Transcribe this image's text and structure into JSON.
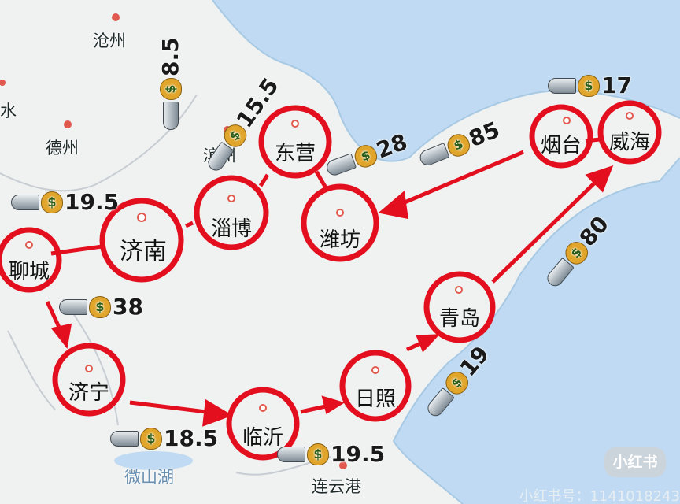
{
  "colors": {
    "sea": "#bfdaf2",
    "land": "#f0f2f1",
    "route": "#e30f1e",
    "dot": "#e0584e"
  },
  "places": [
    {
      "id": "cangzhou",
      "name": "沧州"
    },
    {
      "id": "dezhou",
      "name": "德州"
    },
    {
      "id": "shui",
      "name": "水"
    },
    {
      "id": "binzhou",
      "name": "滨州"
    },
    {
      "id": "weishanhu",
      "name": "微山湖"
    },
    {
      "id": "lianyungang",
      "name": "连云港"
    }
  ],
  "cities": [
    {
      "id": "liaocheng",
      "name": "聊城"
    },
    {
      "id": "jinan",
      "name": "济南"
    },
    {
      "id": "zibo",
      "name": "淄博"
    },
    {
      "id": "dongying",
      "name": "东营"
    },
    {
      "id": "weifang",
      "name": "潍坊"
    },
    {
      "id": "yantai",
      "name": "烟台"
    },
    {
      "id": "weihai",
      "name": "威海"
    },
    {
      "id": "qingdao",
      "name": "青岛"
    },
    {
      "id": "rizhao",
      "name": "日照"
    },
    {
      "id": "linyi",
      "name": "临沂"
    },
    {
      "id": "jining",
      "name": "济宁"
    }
  ],
  "fares": [
    {
      "id": "liaocheng-jinan",
      "value": "19.5"
    },
    {
      "id": "jinan-zibo",
      "value": "8.5"
    },
    {
      "id": "zibo-dongying",
      "value": "15.5"
    },
    {
      "id": "dongying-weifang",
      "value": "28"
    },
    {
      "id": "yantai-weifang",
      "value": "85"
    },
    {
      "id": "weihai-yantai",
      "value": "17"
    },
    {
      "id": "qingdao-weihai",
      "value": "80"
    },
    {
      "id": "rizhao-qingdao",
      "value": "19"
    },
    {
      "id": "linyi-rizhao",
      "value": "19.5"
    },
    {
      "id": "jining-linyi",
      "value": "18.5"
    },
    {
      "id": "liaocheng-jining",
      "value": "38"
    }
  ],
  "icons": {
    "money": "money-bag-icon",
    "train": "bullet-train-icon",
    "logo": "xiaohongshu-logo"
  },
  "watermark": {
    "logo_text": "小红书",
    "id_text": "小红书号：1141018243"
  }
}
